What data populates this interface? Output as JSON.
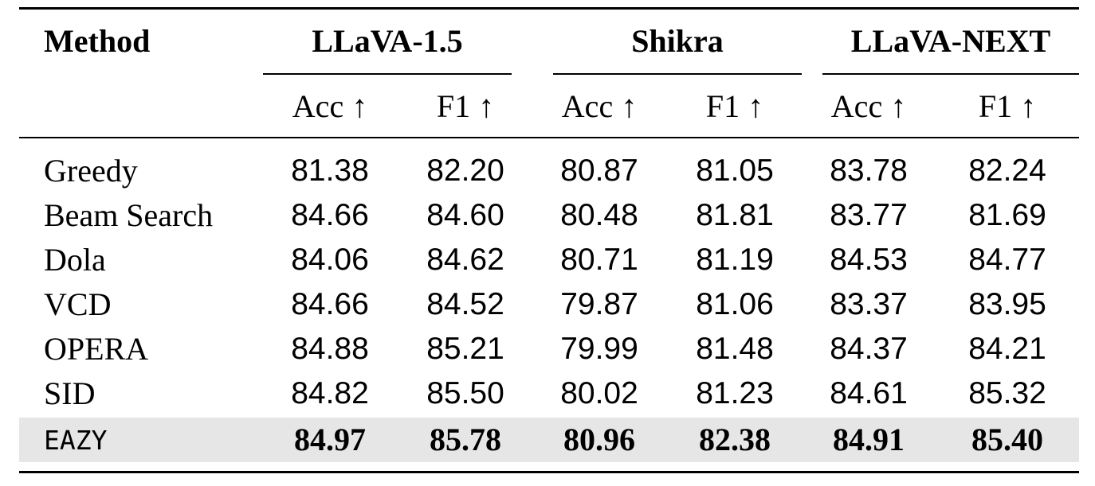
{
  "table": {
    "header": {
      "method": "Method",
      "models": [
        "LLaVA-1.5",
        "Shikra",
        "LLaVA-NEXT"
      ],
      "metric_acc": "Acc ↑",
      "metric_f1": "F1 ↑"
    },
    "rows": [
      {
        "method": "Greedy",
        "values": [
          "81.38",
          "82.20",
          "80.87",
          "81.05",
          "83.78",
          "82.24"
        ]
      },
      {
        "method": "Beam Search",
        "values": [
          "84.66",
          "84.60",
          "80.48",
          "81.81",
          "83.77",
          "81.69"
        ]
      },
      {
        "method": "Dola",
        "values": [
          "84.06",
          "84.62",
          "80.71",
          "81.19",
          "84.53",
          "84.77"
        ]
      },
      {
        "method": "VCD",
        "values": [
          "84.66",
          "84.52",
          "79.87",
          "81.06",
          "83.37",
          "83.95"
        ]
      },
      {
        "method": "OPERA",
        "values": [
          "84.88",
          "85.21",
          "79.99",
          "81.48",
          "84.37",
          "84.21"
        ]
      },
      {
        "method": "SID",
        "values": [
          "84.82",
          "85.50",
          "80.02",
          "81.23",
          "84.61",
          "85.32"
        ]
      },
      {
        "method": "EAZY",
        "values": [
          "84.97",
          "85.78",
          "80.96",
          "82.38",
          "84.91",
          "85.40"
        ]
      }
    ],
    "highlight_color": "#e6e6e6"
  }
}
